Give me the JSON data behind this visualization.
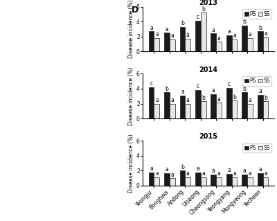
{
  "title_2013": "2013",
  "title_2014": "2014",
  "title_2015": "2015",
  "categories": [
    "Yeongju",
    "Bonghwa",
    "Andong",
    "Uiseong",
    "Cheongsong",
    "Yeongyang",
    "Mungyeong",
    "Yecheon"
  ],
  "ps_2013": [
    2.7,
    2.5,
    3.3,
    4.1,
    2.4,
    2.2,
    3.5,
    2.7
  ],
  "ss_2013": [
    1.8,
    1.6,
    1.7,
    5.2,
    1.3,
    1.6,
    1.8,
    1.9
  ],
  "ps_labels_2013": [
    "a",
    "a",
    "b",
    "c",
    "a",
    "a",
    "b",
    "b"
  ],
  "ss_labels_2013": [
    "a",
    "a",
    "a",
    "b",
    "a",
    "a",
    "a",
    "a"
  ],
  "ps_2014": [
    4.2,
    3.5,
    3.1,
    3.8,
    3.3,
    4.1,
    3.5,
    3.2
  ],
  "ss_2014": [
    2.0,
    2.0,
    2.0,
    2.3,
    2.1,
    2.4,
    2.0,
    2.3
  ],
  "ps_labels_2014": [
    "c",
    "b",
    "a",
    "c",
    "a",
    "c",
    "b",
    "a"
  ],
  "ss_labels_2014": [
    "a",
    "a",
    "a",
    "b",
    "a",
    "b",
    "a",
    "b"
  ],
  "ps_2015": [
    1.8,
    1.7,
    2.0,
    1.8,
    1.5,
    1.6,
    1.5,
    1.7
  ],
  "ss_2015": [
    1.1,
    1.0,
    1.1,
    1.1,
    1.1,
    1.1,
    1.1,
    1.1
  ],
  "ps_labels_2015": [
    "a",
    "a",
    "b",
    "a",
    "a",
    "a",
    "a",
    "a"
  ],
  "ss_labels_2015": [
    "a",
    "a",
    "a",
    "a",
    "a",
    "a",
    "a",
    "a"
  ],
  "ylabel": "Disease incidence (%)",
  "ylim": [
    0,
    6
  ],
  "yticks": [
    0,
    2,
    4,
    6
  ],
  "bar_width": 0.35,
  "ps_color": "#1a1a1a",
  "ss_color": "#e8e8e8",
  "edge_color": "#1a1a1a",
  "title_fontsize": 7,
  "label_fontsize": 5.5,
  "tick_fontsize": 5.5,
  "legend_fontsize": 5.5,
  "annot_fontsize": 5.5,
  "left_panel_label": "D",
  "panel_label_fontsize": 9
}
